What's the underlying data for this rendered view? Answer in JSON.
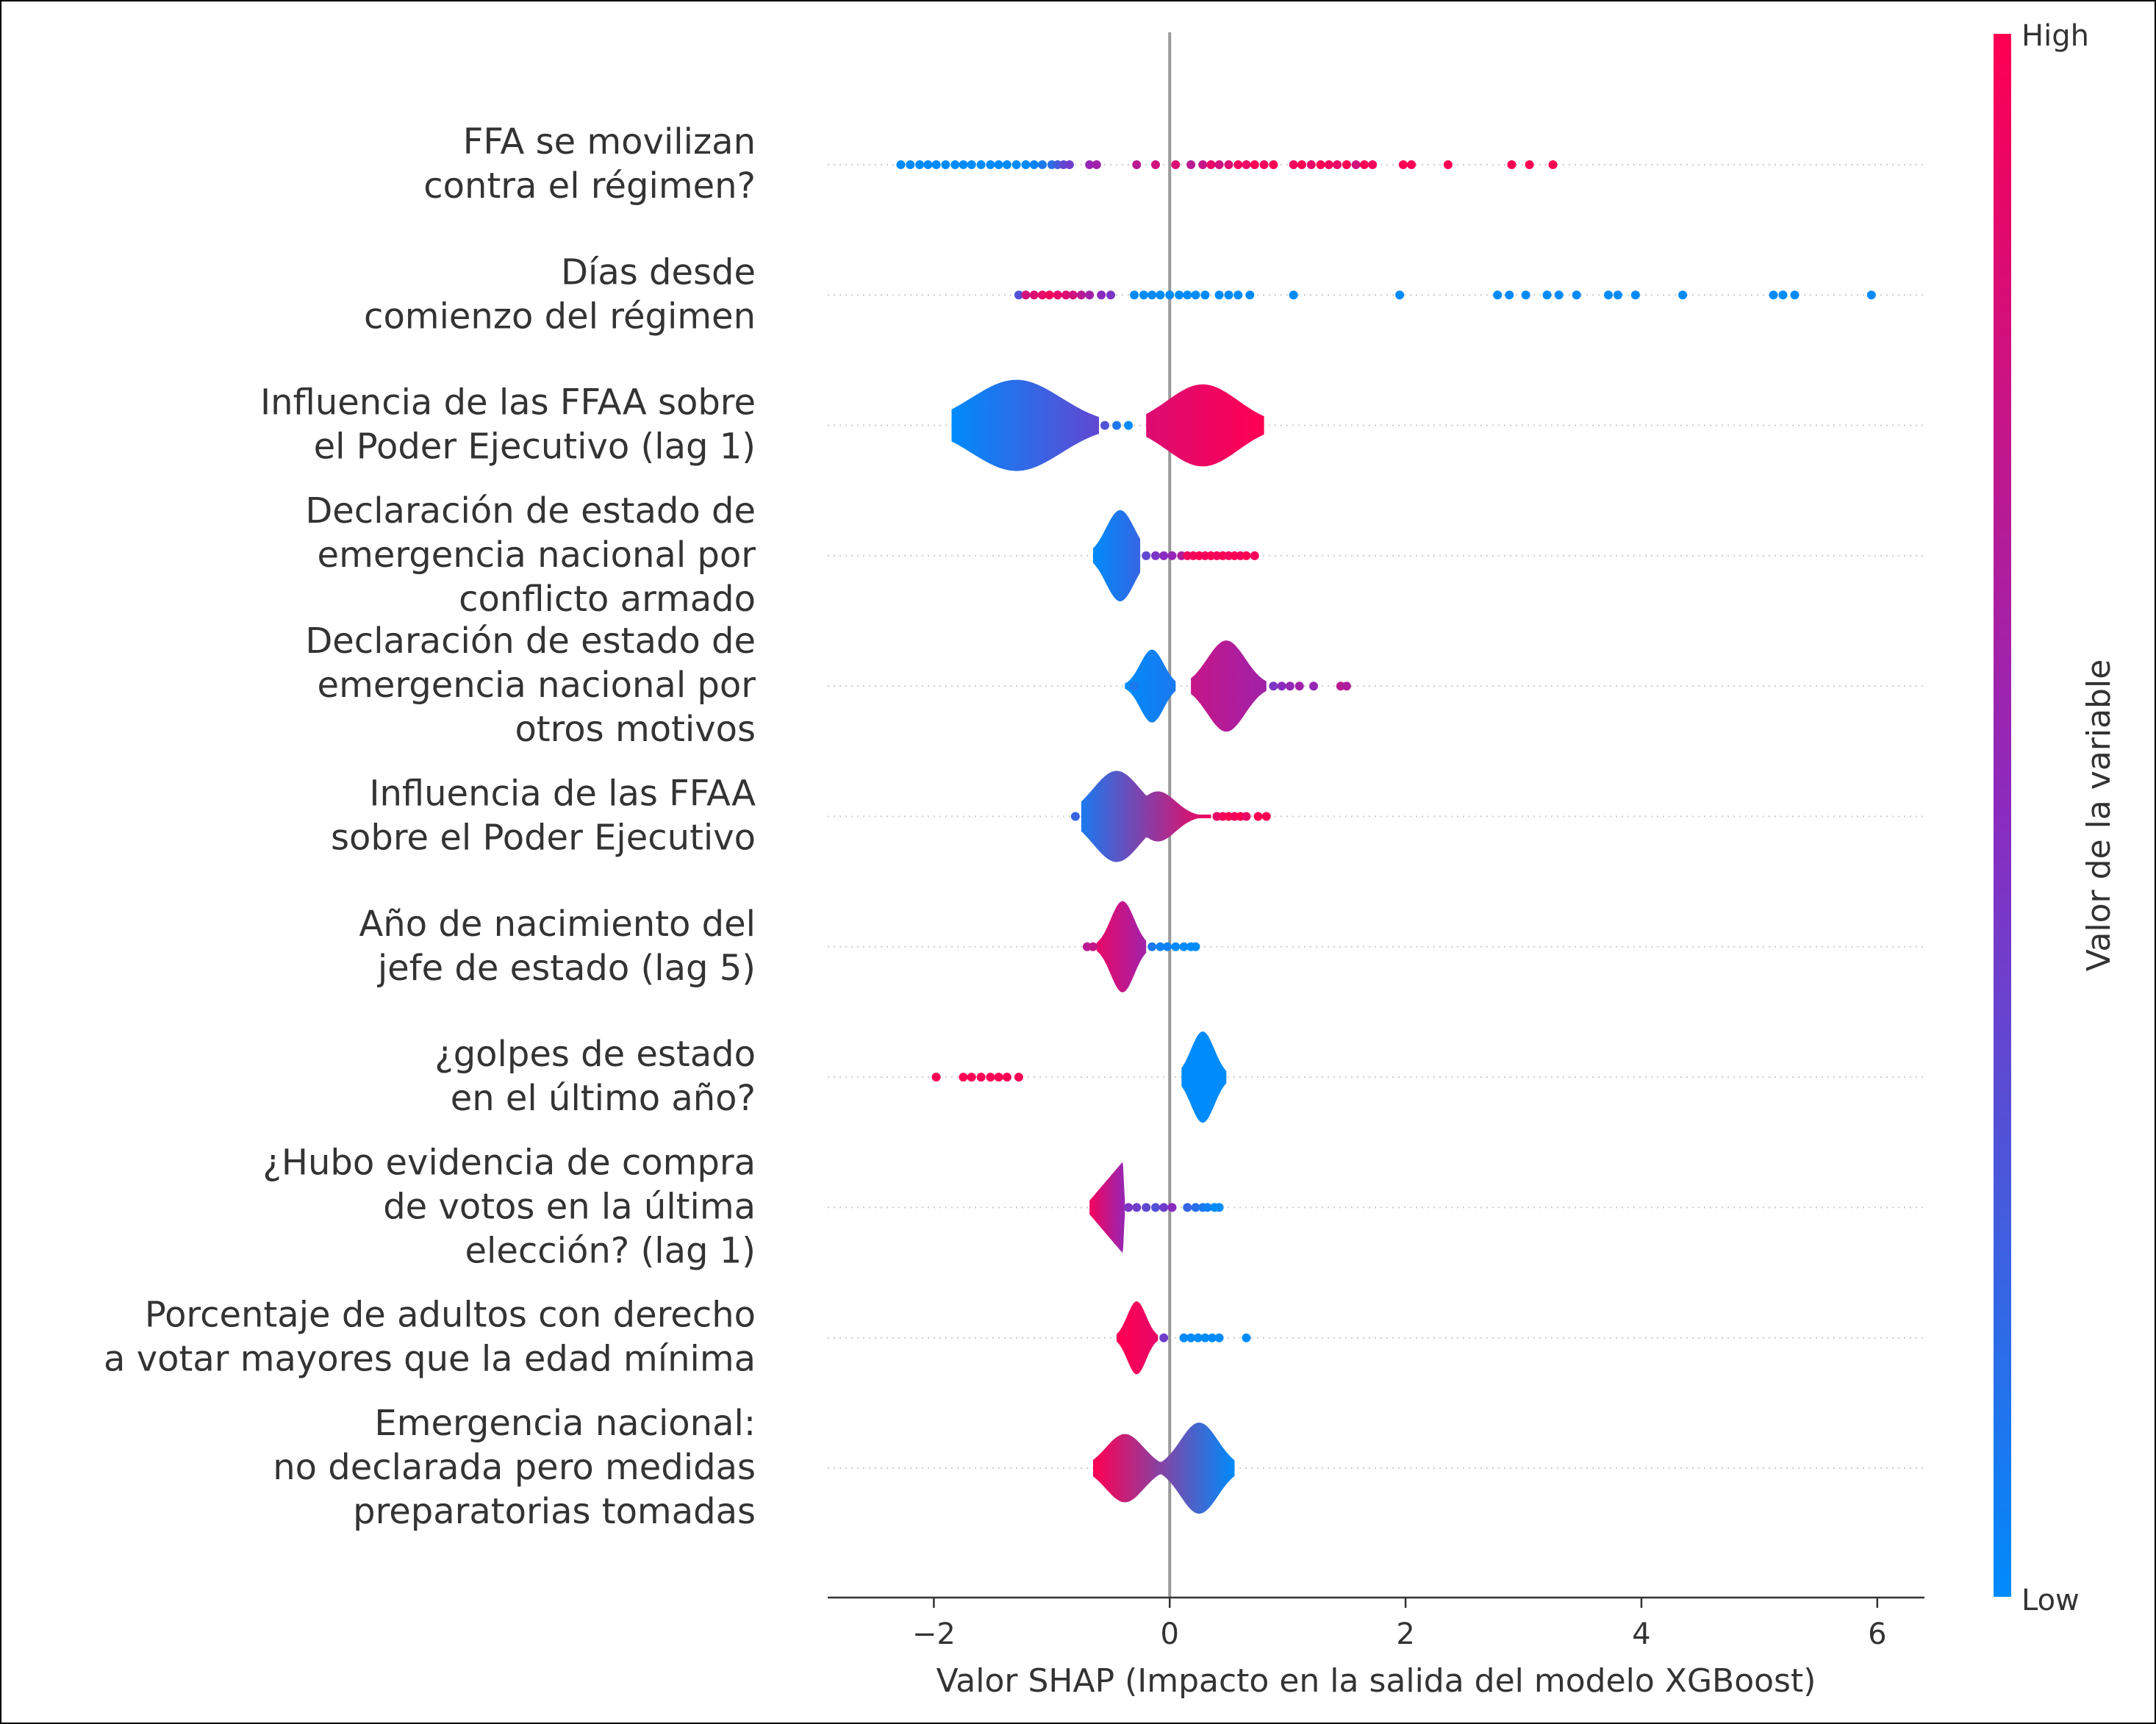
{
  "chart_data": {
    "type": "scatter",
    "subtype": "shap-violin-summary",
    "xlabel": "Valor SHAP (Impacto en la salida del modelo XGBoost)",
    "xlim": [
      -2.9,
      6.4
    ],
    "xticks": [
      -2,
      0,
      2,
      4,
      6
    ],
    "xtick_labels": [
      "−2",
      "0",
      "2",
      "4",
      "6"
    ],
    "zero_line": 0,
    "colorbar": {
      "label": "Valor de la variable",
      "high_label": "High",
      "low_label": "Low",
      "high_color": "#ff0052",
      "low_color": "#008bfb",
      "mid_color": "#8a2bbf"
    },
    "grid": "dotted horizontal rows",
    "features": [
      {
        "label_lines": [
          "FFA se movilizan",
          "contra el régimen?"
        ],
        "violins": [],
        "points": [
          [
            -2.28,
            0.0
          ],
          [
            -2.2,
            0.0
          ],
          [
            -2.12,
            0.0
          ],
          [
            -2.05,
            0.0
          ],
          [
            -1.98,
            0.0
          ],
          [
            -1.9,
            0.0
          ],
          [
            -1.82,
            0.0
          ],
          [
            -1.75,
            0.0
          ],
          [
            -1.68,
            0.0
          ],
          [
            -1.6,
            0.0
          ],
          [
            -1.52,
            0.0
          ],
          [
            -1.45,
            0.0
          ],
          [
            -1.38,
            0.0
          ],
          [
            -1.3,
            0.0
          ],
          [
            -1.22,
            0.0
          ],
          [
            -1.15,
            0.05
          ],
          [
            -1.08,
            0.1
          ],
          [
            -1.0,
            0.15
          ],
          [
            -0.95,
            0.25
          ],
          [
            -0.9,
            0.35
          ],
          [
            -0.85,
            0.4
          ],
          [
            -0.68,
            0.55
          ],
          [
            -0.62,
            0.6
          ],
          [
            -0.28,
            0.7
          ],
          [
            -0.12,
            0.8
          ],
          [
            0.05,
            0.85
          ],
          [
            0.18,
            0.7
          ],
          [
            0.28,
            0.75
          ],
          [
            0.35,
            0.9
          ],
          [
            0.42,
            0.8
          ],
          [
            0.5,
            0.85
          ],
          [
            0.58,
            0.95
          ],
          [
            0.65,
            0.9
          ],
          [
            0.72,
            1.0
          ],
          [
            0.8,
            0.95
          ],
          [
            0.88,
            1.0
          ],
          [
            1.05,
            0.95
          ],
          [
            1.12,
            1.0
          ],
          [
            1.2,
            0.9
          ],
          [
            1.28,
            1.0
          ],
          [
            1.35,
            0.95
          ],
          [
            1.42,
            0.9
          ],
          [
            1.5,
            1.0
          ],
          [
            1.58,
            0.8
          ],
          [
            1.65,
            1.0
          ],
          [
            1.72,
            0.95
          ],
          [
            1.98,
            1.0
          ],
          [
            2.05,
            1.0
          ],
          [
            2.36,
            1.0
          ],
          [
            2.9,
            1.0
          ],
          [
            3.05,
            1.0
          ],
          [
            3.25,
            1.0
          ]
        ]
      },
      {
        "label_lines": [
          "Días desde",
          "comienzo del régimen"
        ],
        "violins": [],
        "points": [
          [
            -1.28,
            0.3
          ],
          [
            -1.22,
            0.8
          ],
          [
            -1.15,
            0.85
          ],
          [
            -1.08,
            0.9
          ],
          [
            -1.02,
            0.95
          ],
          [
            -0.95,
            0.9
          ],
          [
            -0.88,
            0.85
          ],
          [
            -0.82,
            0.8
          ],
          [
            -0.75,
            0.7
          ],
          [
            -0.68,
            0.6
          ],
          [
            -0.58,
            0.5
          ],
          [
            -0.5,
            0.45
          ],
          [
            -0.3,
            0.0
          ],
          [
            -0.22,
            0.0
          ],
          [
            -0.15,
            0.0
          ],
          [
            -0.08,
            0.0
          ],
          [
            0.0,
            0.0
          ],
          [
            0.08,
            0.0
          ],
          [
            0.15,
            0.0
          ],
          [
            0.22,
            0.0
          ],
          [
            0.3,
            0.0
          ],
          [
            0.42,
            0.0
          ],
          [
            0.5,
            0.0
          ],
          [
            0.58,
            0.0
          ],
          [
            0.68,
            0.0
          ],
          [
            1.05,
            0.0
          ],
          [
            1.95,
            0.0
          ],
          [
            2.78,
            0.0
          ],
          [
            2.88,
            0.0
          ],
          [
            3.02,
            0.0
          ],
          [
            3.2,
            0.0
          ],
          [
            3.3,
            0.0
          ],
          [
            3.45,
            0.0
          ],
          [
            3.72,
            0.0
          ],
          [
            3.8,
            0.0
          ],
          [
            3.95,
            0.0
          ],
          [
            4.35,
            0.0
          ],
          [
            5.12,
            0.0
          ],
          [
            5.2,
            0.0
          ],
          [
            5.3,
            0.0
          ],
          [
            5.95,
            0.0
          ]
        ]
      },
      {
        "label_lines": [
          "Influencia de las FFAA sobre",
          "el Poder Ejecutivo (lag 1)"
        ],
        "violins": [
          {
            "x0": -1.85,
            "x1": -0.6,
            "peak": -1.3,
            "sigma": 0.38,
            "height": 1.0,
            "c0": 0.0,
            "c1": 0.35
          },
          {
            "x0": -0.2,
            "x1": 0.8,
            "peak": 0.28,
            "sigma": 0.3,
            "height": 0.9,
            "c0": 0.85,
            "c1": 1.0
          }
        ],
        "points": [
          [
            -0.55,
            0.3
          ],
          [
            -0.45,
            0.1
          ],
          [
            -0.35,
            0.0
          ]
        ]
      },
      {
        "label_lines": [
          "Declaración de estado de",
          "emergencia nacional por",
          "conflicto armado"
        ],
        "violins": [
          {
            "x0": -0.65,
            "x1": -0.25,
            "peak": -0.42,
            "sigma": 0.12,
            "height": 1.0,
            "c0": 0.0,
            "c1": 0.2
          }
        ],
        "points": [
          [
            -0.2,
            0.35
          ],
          [
            -0.12,
            0.45
          ],
          [
            -0.05,
            0.5
          ],
          [
            0.02,
            0.55
          ],
          [
            0.1,
            0.65
          ],
          [
            0.15,
            0.95
          ],
          [
            0.2,
            0.95
          ],
          [
            0.25,
            1.0
          ],
          [
            0.3,
            0.95
          ],
          [
            0.35,
            1.0
          ],
          [
            0.4,
            0.95
          ],
          [
            0.45,
            1.0
          ],
          [
            0.5,
            0.95
          ],
          [
            0.55,
            1.0
          ],
          [
            0.6,
            0.95
          ],
          [
            0.65,
            1.0
          ],
          [
            0.72,
            0.95
          ]
        ]
      },
      {
        "label_lines": [
          "Declaración de estado de",
          "emergencia nacional por",
          "otros motivos"
        ],
        "violins": [
          {
            "x0": -0.38,
            "x1": 0.05,
            "peak": -0.15,
            "sigma": 0.1,
            "height": 0.8,
            "c0": 0.0,
            "c1": 0.1
          },
          {
            "x0": 0.18,
            "x1": 0.82,
            "peak": 0.48,
            "sigma": 0.16,
            "height": 1.0,
            "c0": 0.75,
            "c1": 0.6
          }
        ],
        "points": [
          [
            -0.3,
            0.1
          ],
          [
            0.88,
            0.45
          ],
          [
            0.95,
            0.5
          ],
          [
            1.02,
            0.55
          ],
          [
            1.1,
            0.6
          ],
          [
            1.22,
            0.55
          ],
          [
            1.45,
            0.7
          ],
          [
            1.5,
            0.65
          ]
        ]
      },
      {
        "label_lines": [
          "Influencia de las FFAA",
          "sobre el Poder Ejecutivo"
        ],
        "violins": [
          {
            "x0": -0.75,
            "x1": 0.35,
            "peak": -0.45,
            "sigma": 0.2,
            "height": 1.0,
            "c0": 0.1,
            "c1": 0.95,
            "secondary": {
              "peak": -0.1,
              "sigma": 0.15,
              "h": 0.55
            }
          }
        ],
        "points": [
          [
            -0.8,
            0.2
          ],
          [
            0.4,
            0.9
          ],
          [
            0.45,
            0.95
          ],
          [
            0.5,
            1.0
          ],
          [
            0.55,
            0.95
          ],
          [
            0.6,
            1.0
          ],
          [
            0.65,
            0.9
          ],
          [
            0.75,
            1.0
          ],
          [
            0.82,
            1.0
          ]
        ]
      },
      {
        "label_lines": [
          "Año de nacimiento del",
          "jefe de estado (lag 5)"
        ],
        "violins": [
          {
            "x0": -0.62,
            "x1": -0.2,
            "peak": -0.4,
            "sigma": 0.1,
            "height": 1.0,
            "c0": 0.9,
            "c1": 0.6
          }
        ],
        "points": [
          [
            -0.7,
            0.7
          ],
          [
            -0.65,
            0.75
          ],
          [
            -0.15,
            0.1
          ],
          [
            -0.08,
            0.05
          ],
          [
            -0.02,
            0.05
          ],
          [
            0.05,
            0.0
          ],
          [
            0.12,
            0.0
          ],
          [
            0.18,
            0.0
          ],
          [
            0.22,
            0.0
          ]
        ]
      },
      {
        "label_lines": [
          "¿golpes de estado",
          "en el último año?"
        ],
        "violins": [
          {
            "x0": 0.1,
            "x1": 0.48,
            "peak": 0.28,
            "sigma": 0.1,
            "height": 1.0,
            "c0": 0.0,
            "c1": 0.0
          }
        ],
        "points": [
          [
            -1.98,
            1.0
          ],
          [
            -1.75,
            1.0
          ],
          [
            -1.68,
            1.0
          ],
          [
            -1.6,
            1.0
          ],
          [
            -1.52,
            1.0
          ],
          [
            -1.45,
            1.0
          ],
          [
            -1.38,
            1.0
          ],
          [
            -1.28,
            1.0
          ]
        ]
      },
      {
        "label_lines": [
          "¿Hubo evidencia de compra",
          "de votos en la última",
          "elección? (lag 1)"
        ],
        "violins": [
          {
            "x0": -0.68,
            "x1": -0.38,
            "peak": -0.4,
            "sigma": 0.15,
            "height": 1.0,
            "c0": 0.95,
            "c1": 0.55,
            "wedge": true
          }
        ],
        "points": [
          [
            -0.35,
            0.45
          ],
          [
            -0.28,
            0.4
          ],
          [
            -0.2,
            0.35
          ],
          [
            -0.12,
            0.3
          ],
          [
            -0.05,
            0.4
          ],
          [
            0.02,
            0.5
          ],
          [
            0.15,
            0.2
          ],
          [
            0.22,
            0.15
          ],
          [
            0.28,
            0.1
          ],
          [
            0.32,
            0.05
          ],
          [
            0.38,
            0.0
          ],
          [
            0.42,
            0.0
          ]
        ]
      },
      {
        "label_lines": [
          "Porcentaje de adultos con derecho",
          "a votar mayores que la edad mínima"
        ],
        "violins": [
          {
            "x0": -0.45,
            "x1": -0.1,
            "peak": -0.28,
            "sigma": 0.08,
            "height": 0.8,
            "c0": 1.0,
            "c1": 0.9
          }
        ],
        "points": [
          [
            -0.05,
            0.4
          ],
          [
            0.12,
            0.0
          ],
          [
            0.18,
            0.0
          ],
          [
            0.24,
            0.0
          ],
          [
            0.3,
            0.0
          ],
          [
            0.36,
            0.0
          ],
          [
            0.42,
            0.0
          ],
          [
            0.65,
            0.0
          ]
        ]
      },
      {
        "label_lines": [
          "Emergencia nacional:",
          "no declarada pero medidas",
          "preparatorias tomadas"
        ],
        "violins": [
          {
            "x0": -0.65,
            "x1": 0.55,
            "peak": 0.25,
            "sigma": 0.16,
            "height": 1.0,
            "c0": 1.0,
            "c1": 0.0,
            "secondary": {
              "peak": -0.38,
              "sigma": 0.16,
              "h": 0.75
            }
          }
        ],
        "points": []
      }
    ]
  }
}
